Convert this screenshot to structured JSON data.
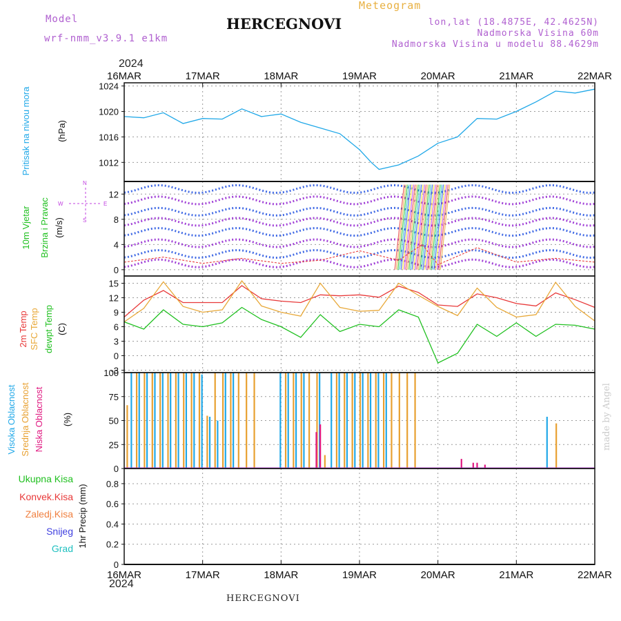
{
  "header": {
    "model_label": "Model",
    "model_name": "wrf-nmm_v3.9.1  e1km",
    "station": "HERCEGNOVI",
    "meteogram": "Meteogram",
    "lonlat": "lon,lat (18.4875E, 42.4625N)",
    "altitude": "Nadmorska Visina 60m",
    "model_altitude": "Nadmorska Visina u modelu 88.4629m",
    "year": "2024",
    "credit": "made by Angel",
    "bottom_station": "HERCEGNOVI"
  },
  "axis_dates": [
    "16MAR",
    "17MAR",
    "18MAR",
    "19MAR",
    "20MAR",
    "21MAR",
    "22MAR"
  ],
  "colors": {
    "pressure": "#20a8e8",
    "temp2m": "#e83838",
    "sfc": "#e8a838",
    "dew": "#20c020",
    "wind_purple": "#9020d0",
    "wind_blue": "#2050e0",
    "high_cloud": "#20a8e8",
    "mid_cloud": "#e8a030",
    "low_cloud": "#e01880"
  },
  "panel_labels": {
    "pressure": [
      "Pritisak na nivou mora"
    ],
    "pressure_unit": "(hPa)",
    "wind": [
      "10m Vjetar",
      "Brzina i Pravac"
    ],
    "wind_unit": "(m/s)",
    "compass": {
      "n": "N",
      "s": "S",
      "w": "W",
      "e": "E"
    },
    "temp": [
      "2m Temp",
      "SFC Temp",
      "dewpt Temp"
    ],
    "temp_unit": "(C)",
    "cloud": [
      "Visoka Oblacnost",
      "Srednja Oblacnost",
      "Niska Oblacnost"
    ],
    "cloud_unit": "(%)",
    "precip": [
      "Ukupna Kisa",
      "Konvek.Kisa",
      "Zaledj.Kisa",
      "Snijeg",
      "Grad"
    ],
    "precip_unit": "1hr Precip (mm)"
  },
  "chart_data": [
    {
      "type": "line",
      "panel": "pressure",
      "ylabel": "(hPa)",
      "yticks": [
        1012,
        1016,
        1020,
        1024
      ],
      "ylim": [
        1009,
        1024.5
      ],
      "x": [
        0,
        0.25,
        0.5,
        0.75,
        1,
        1.25,
        1.5,
        1.75,
        2,
        2.25,
        2.5,
        2.75,
        3,
        3.15,
        3.25,
        3.5,
        3.75,
        4,
        4.25,
        4.5,
        4.75,
        5,
        5.25,
        5.5,
        5.75,
        6
      ],
      "series": [
        {
          "values": [
            1019.2,
            1019.0,
            1019.8,
            1018.1,
            1018.9,
            1018.8,
            1020.4,
            1019.2,
            1019.6,
            1018.3,
            1017.4,
            1016.5,
            1014.0,
            1012.0,
            1010.9,
            1011.6,
            1013.0,
            1015.0,
            1016.0,
            1018.9,
            1018.8,
            1020.0,
            1021.5,
            1023.2,
            1022.9,
            1023.5
          ]
        }
      ]
    },
    {
      "type": "line",
      "panel": "wind",
      "ylabel": "(m/s)",
      "yticks": [
        0,
        4,
        8,
        12
      ],
      "ylim": [
        -1,
        14
      ],
      "x": [
        0,
        0.5,
        1,
        1.5,
        2,
        2.5,
        3,
        3.5,
        3.8,
        4,
        4.5,
        5,
        5.5,
        6
      ],
      "series": [
        {
          "values": [
            1.2,
            2.0,
            1.0,
            1.8,
            1.0,
            1.5,
            3.0,
            1.5,
            4.0,
            0.8,
            3.5,
            1.2,
            1.8,
            1.2
          ]
        }
      ]
    },
    {
      "type": "line",
      "panel": "temperature",
      "ylabel": "(C)",
      "yticks": [
        -3,
        0,
        3,
        6,
        9,
        12,
        15
      ],
      "ylim": [
        -3.5,
        16.5
      ],
      "x": [
        0,
        0.25,
        0.5,
        0.75,
        1,
        1.25,
        1.5,
        1.75,
        2,
        2.25,
        2.5,
        2.75,
        3,
        3.25,
        3.5,
        3.75,
        4,
        4.25,
        4.5,
        4.75,
        5,
        5.25,
        5.5,
        5.75,
        6
      ],
      "series": [
        {
          "name": "2m Temp",
          "values": [
            8.0,
            11.5,
            13.5,
            11.0,
            11.0,
            11.0,
            14.5,
            11.8,
            11.3,
            11.0,
            12.6,
            12.4,
            12.6,
            12.1,
            14.4,
            13.1,
            10.5,
            10.2,
            12.8,
            12.0,
            10.8,
            10.3,
            13.0,
            11.6,
            10.0
          ]
        },
        {
          "name": "SFC Temp",
          "values": [
            7.0,
            9.8,
            15.3,
            10.2,
            9.0,
            9.5,
            15.5,
            10.3,
            9.0,
            8.2,
            15.0,
            10.0,
            9.2,
            9.4,
            15.0,
            12.5,
            10.2,
            8.3,
            14.0,
            10.0,
            8.0,
            8.5,
            15.2,
            10.2,
            7.2
          ]
        },
        {
          "name": "dewpt Temp",
          "values": [
            7.0,
            5.5,
            9.5,
            6.5,
            6.0,
            6.8,
            10.0,
            7.5,
            6.0,
            3.8,
            8.5,
            5.0,
            6.5,
            6.0,
            9.5,
            8.0,
            -1.5,
            0.5,
            6.5,
            4.0,
            6.8,
            4.0,
            6.5,
            6.3,
            5.5
          ]
        }
      ]
    },
    {
      "type": "bar",
      "panel": "cloud",
      "ylabel": "(%)",
      "yticks": [
        0,
        25,
        50,
        75,
        100
      ],
      "ylim": [
        0,
        100
      ],
      "series": [
        {
          "name": "Visoka Oblacnost",
          "x": [
            0.1,
            0.2,
            0.3,
            0.4,
            0.5,
            0.6,
            0.7,
            0.8,
            0.9,
            1.0,
            1.1,
            1.2,
            1.3,
            1.4,
            2.0,
            2.1,
            2.2,
            2.3,
            2.5,
            2.65,
            2.75,
            2.85,
            2.95,
            3.05,
            3.15,
            3.25,
            3.35,
            5.4
          ],
          "values": [
            100,
            100,
            100,
            100,
            100,
            100,
            100,
            100,
            100,
            98,
            54,
            50,
            100,
            100,
            100,
            100,
            100,
            100,
            100,
            100,
            100,
            100,
            100,
            100,
            100,
            100,
            100,
            54
          ]
        },
        {
          "name": "Srednja Oblacnost",
          "x": [
            0.03,
            0.15,
            0.25,
            0.35,
            0.45,
            0.55,
            0.65,
            0.75,
            0.85,
            0.95,
            1.05,
            1.15,
            1.25,
            1.35,
            1.45,
            1.55,
            1.65,
            2.05,
            2.15,
            2.25,
            2.35,
            2.45,
            2.55,
            2.7,
            2.8,
            2.9,
            3.0,
            3.1,
            3.2,
            3.3,
            3.4,
            3.5,
            3.6,
            3.7,
            5.5
          ],
          "values": [
            66,
            100,
            100,
            100,
            100,
            100,
            100,
            100,
            100,
            100,
            55,
            100,
            100,
            100,
            100,
            100,
            100,
            100,
            100,
            100,
            100,
            100,
            14,
            100,
            100,
            100,
            100,
            100,
            100,
            100,
            100,
            100,
            100,
            100,
            47
          ]
        },
        {
          "name": "Niska Oblacnost",
          "x": [
            2.45,
            2.5,
            4.3,
            4.45,
            4.5,
            4.6
          ],
          "values": [
            38,
            46,
            10,
            6,
            6,
            4
          ]
        }
      ]
    },
    {
      "type": "bar",
      "panel": "precipitation",
      "ylabel": "1hr Precip (mm)",
      "yticks": [
        0,
        0.2,
        0.4,
        0.6,
        0.8
      ],
      "ylim": [
        0,
        0.95
      ],
      "series": [
        {
          "name": "Ukupna Kisa",
          "x": [],
          "values": []
        },
        {
          "name": "Konvek.Kisa",
          "x": [],
          "values": []
        },
        {
          "name": "Zaledj.Kisa",
          "x": [],
          "values": []
        },
        {
          "name": "Snijeg",
          "x": [],
          "values": []
        },
        {
          "name": "Grad",
          "x": [],
          "values": []
        }
      ]
    }
  ]
}
